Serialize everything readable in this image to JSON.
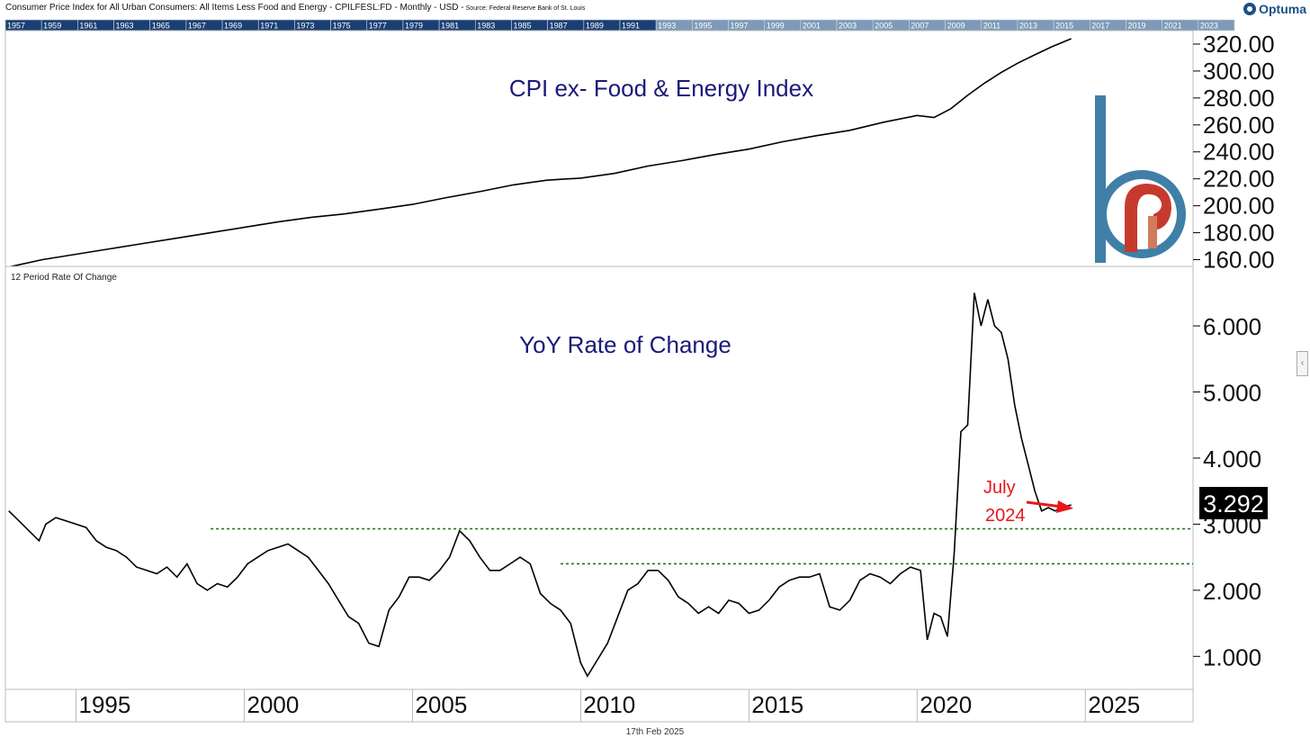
{
  "header": {
    "title": "Consumer Price Index for All Urban Consumers: All Items Less Food and Energy - CPILFESL:FD - Monthly - USD -",
    "source": "Source: Federal Reserve Bank of St. Louis",
    "brand": "Optuma"
  },
  "timeline": {
    "labels": [
      "1957",
      "1959",
      "1961",
      "1963",
      "1965",
      "1967",
      "1969",
      "1971",
      "1973",
      "1975",
      "1977",
      "1979",
      "1981",
      "1983",
      "1985",
      "1987",
      "1989",
      "1991",
      "1993",
      "1995",
      "1997",
      "1999",
      "2001",
      "2003",
      "2005",
      "2007",
      "2009",
      "2011",
      "2013",
      "2015",
      "2017",
      "2019",
      "2021",
      "2023"
    ]
  },
  "footer": {
    "date": "17th Feb 2025"
  },
  "scroll_handle": {
    "glyph": "‹"
  },
  "colors": {
    "line": "#000000",
    "panel_title": "#1a1a7a",
    "annotation": "#e8161c",
    "guide": "#1a7a1a",
    "timeline_dark": "#1b3f73",
    "timeline_light": "#7d9ab8",
    "logo_blue": "#3f7fa8",
    "logo_red": "#c63a2e"
  },
  "chart_data": [
    {
      "type": "line",
      "panel": "top",
      "title": "CPI ex- Food & Energy Index",
      "ylim": [
        155,
        330
      ],
      "yticks": [
        "320.00",
        "300.00",
        "280.00",
        "260.00",
        "240.00",
        "220.00",
        "200.00",
        "180.00",
        "160.00"
      ],
      "series": [
        {
          "x": [
            1993.0,
            1994.0,
            1995.0,
            1996.0,
            1997.0,
            1998.0,
            1999.0,
            2000.0,
            2001.0,
            2002.0,
            2003.0,
            2004.0,
            2005.0,
            2006.0,
            2007.0,
            2008.0,
            2009.0,
            2010.0,
            2011.0,
            2012.0,
            2013.0,
            2014.0,
            2015.0,
            2016.0,
            2017.0,
            2018.0,
            2019.0,
            2020.0,
            2020.5,
            2021.0,
            2021.5,
            2022.0,
            2022.5,
            2023.0,
            2023.5,
            2024.0,
            2024.58
          ],
          "y": [
            154.5,
            160.0,
            164.0,
            168.0,
            172.0,
            176.0,
            180.0,
            184.0,
            188.0,
            191.5,
            194.0,
            197.5,
            201.0,
            206.0,
            210.5,
            215.5,
            219.0,
            220.5,
            224.0,
            229.5,
            233.5,
            238.0,
            242.0,
            247.5,
            252.0,
            256.0,
            262.0,
            267.0,
            265.5,
            272.0,
            282.0,
            291.0,
            299.0,
            306.0,
            312.0,
            318.0,
            324.0
          ]
        }
      ]
    },
    {
      "type": "line",
      "panel": "bottom",
      "title": "YoY Rate of Change",
      "subtitle": "12 Period Rate Of Change",
      "ylim": [
        0.5,
        6.9
      ],
      "yticks": [
        "6.000",
        "5.000",
        "4.000",
        "3.000",
        "2.000",
        "1.000"
      ],
      "last_value": "3.292",
      "guides": [
        2.93,
        2.4
      ],
      "annotation": {
        "line1": "July",
        "line2": "2024"
      },
      "series": [
        {
          "x": [
            1993.0,
            1993.3,
            1993.6,
            1993.9,
            1994.1,
            1994.4,
            1994.7,
            1995.0,
            1995.3,
            1995.6,
            1995.9,
            1996.2,
            1996.5,
            1996.8,
            1997.1,
            1997.4,
            1997.7,
            1998.0,
            1998.3,
            1998.6,
            1998.9,
            1999.2,
            1999.5,
            1999.8,
            2000.1,
            2000.4,
            2000.7,
            2001.0,
            2001.3,
            2001.6,
            2001.9,
            2002.2,
            2002.5,
            2002.8,
            2003.1,
            2003.4,
            2003.7,
            2004.0,
            2004.3,
            2004.6,
            2004.9,
            2005.2,
            2005.5,
            2005.8,
            2006.1,
            2006.4,
            2006.7,
            2007.0,
            2007.3,
            2007.6,
            2007.9,
            2008.2,
            2008.5,
            2008.8,
            2009.1,
            2009.4,
            2009.7,
            2010.0,
            2010.2,
            2010.5,
            2010.8,
            2011.1,
            2011.4,
            2011.7,
            2012.0,
            2012.3,
            2012.6,
            2012.9,
            2013.2,
            2013.5,
            2013.8,
            2014.1,
            2014.4,
            2014.7,
            2015.0,
            2015.3,
            2015.6,
            2015.9,
            2016.2,
            2016.5,
            2016.8,
            2017.1,
            2017.4,
            2017.7,
            2018.0,
            2018.3,
            2018.6,
            2018.9,
            2019.2,
            2019.5,
            2019.8,
            2020.1,
            2020.3,
            2020.5,
            2020.7,
            2020.9,
            2021.1,
            2021.3,
            2021.5,
            2021.7,
            2021.9,
            2022.1,
            2022.3,
            2022.5,
            2022.7,
            2022.9,
            2023.1,
            2023.3,
            2023.5,
            2023.7,
            2023.9,
            2024.1,
            2024.3,
            2024.58
          ],
          "y": [
            3.2,
            3.05,
            2.9,
            2.75,
            3.0,
            3.1,
            3.05,
            3.0,
            2.95,
            2.75,
            2.65,
            2.6,
            2.5,
            2.35,
            2.3,
            2.25,
            2.35,
            2.2,
            2.4,
            2.1,
            2.0,
            2.1,
            2.05,
            2.2,
            2.4,
            2.5,
            2.6,
            2.65,
            2.7,
            2.6,
            2.5,
            2.3,
            2.1,
            1.85,
            1.6,
            1.5,
            1.2,
            1.15,
            1.7,
            1.9,
            2.2,
            2.2,
            2.15,
            2.3,
            2.5,
            2.9,
            2.75,
            2.5,
            2.3,
            2.3,
            2.4,
            2.5,
            2.4,
            1.95,
            1.8,
            1.7,
            1.5,
            0.9,
            0.7,
            0.95,
            1.2,
            1.6,
            2.0,
            2.1,
            2.3,
            2.3,
            2.15,
            1.9,
            1.8,
            1.65,
            1.75,
            1.65,
            1.85,
            1.8,
            1.65,
            1.7,
            1.85,
            2.05,
            2.15,
            2.2,
            2.2,
            2.25,
            1.75,
            1.7,
            1.85,
            2.15,
            2.25,
            2.2,
            2.1,
            2.25,
            2.35,
            2.3,
            1.25,
            1.65,
            1.6,
            1.3,
            2.55,
            4.4,
            4.5,
            6.5,
            6.0,
            6.4,
            6.0,
            5.9,
            5.5,
            4.8,
            4.3,
            3.9,
            3.5,
            3.2,
            3.25,
            3.2,
            3.25,
            3.292
          ]
        }
      ]
    }
  ],
  "xaxis": {
    "xlim": [
      1992.9,
      2028.2
    ],
    "labels": [
      "1995",
      "2000",
      "2005",
      "2010",
      "2015",
      "2020",
      "2025"
    ],
    "values": [
      1995,
      2000,
      2005,
      2010,
      2015,
      2020,
      2025
    ]
  }
}
